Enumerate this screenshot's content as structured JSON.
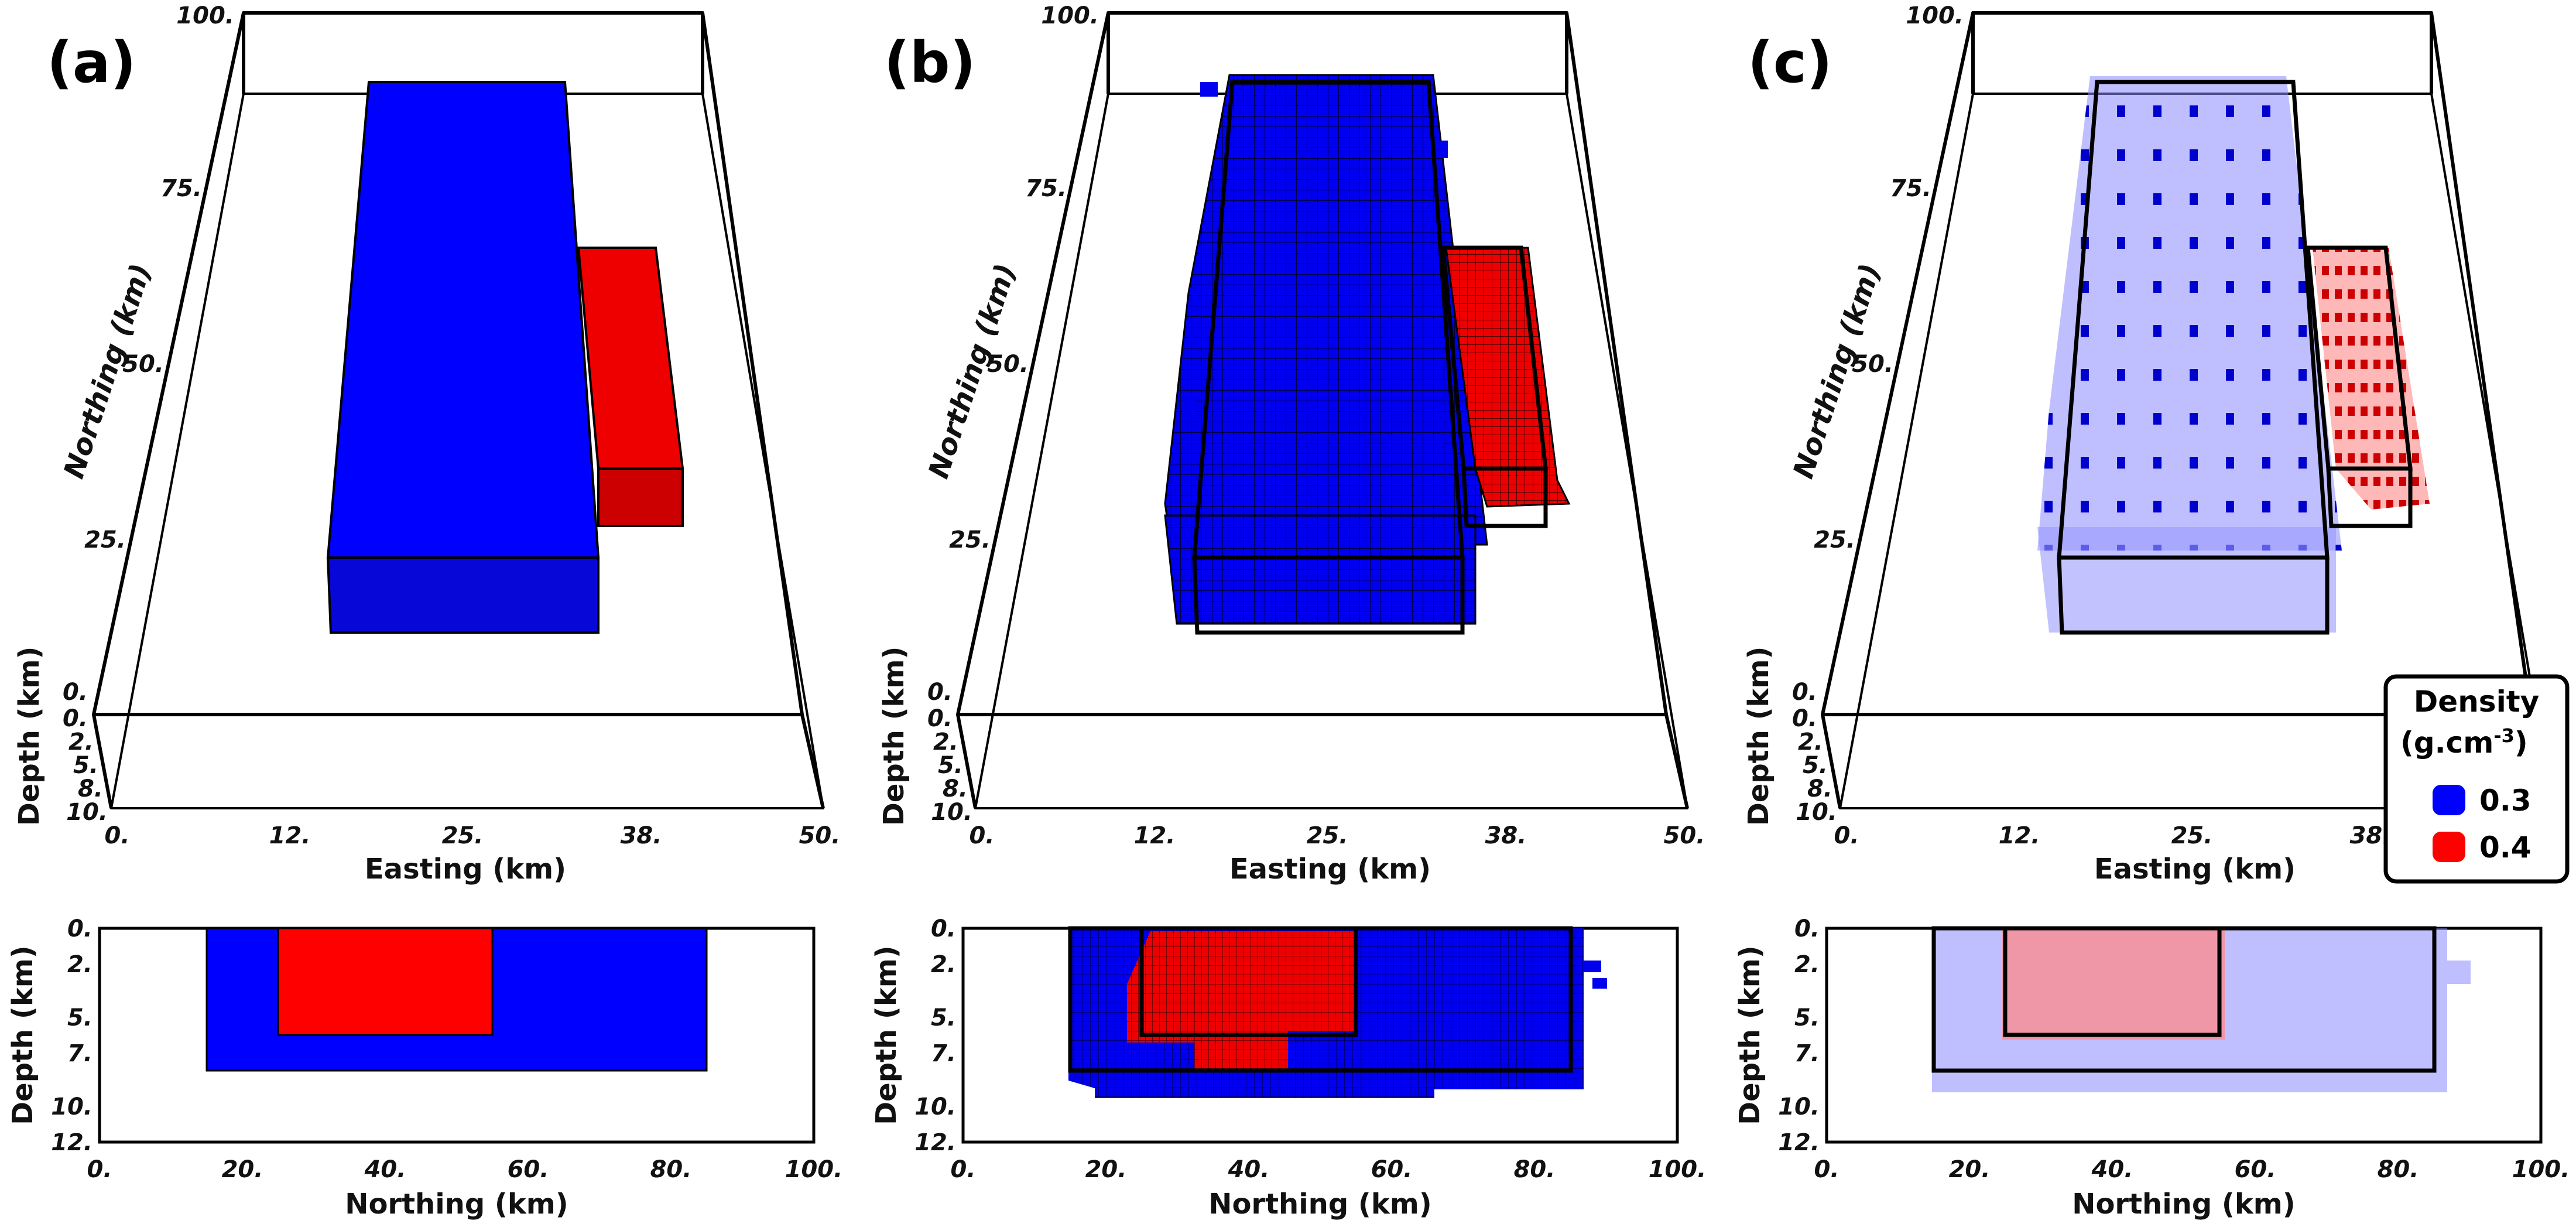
{
  "panels": [
    {
      "label": "(a)",
      "northing_label": "Northing (km)",
      "easting_label": "Easting (km)",
      "depth_label": "Depth (km)",
      "bottom_xlabel": "Northing (km)",
      "bottom_ylabel": "Depth (km)"
    },
    {
      "label": "(b)",
      "northing_label": "Northing (km)",
      "easting_label": "Easting (km)",
      "depth_label": "Depth (km)",
      "bottom_xlabel": "Northing (km)",
      "bottom_ylabel": "Depth (km)"
    },
    {
      "label": "(c)",
      "northing_label": "Northing (km)",
      "easting_label": "Easting (km)",
      "depth_label": "Depth (km)",
      "bottom_xlabel": "Northing (km)",
      "bottom_ylabel": "Depth (km)"
    }
  ],
  "axes": {
    "northing_ticks": [
      "0.",
      "25.",
      "50.",
      "75.",
      "100."
    ],
    "easting_ticks": [
      "0.",
      "12.",
      "25.",
      "38.",
      "50."
    ],
    "depth_ticks_3d": [
      "0.",
      "2.",
      "5.",
      "8.",
      "10."
    ],
    "bottom_x_ticks": [
      "0.",
      "20.",
      "40.",
      "60.",
      "80.",
      "100."
    ],
    "bottom_y_ticks": [
      "0.",
      "2.",
      "5.",
      "7.",
      "10.",
      "12."
    ]
  },
  "legend": {
    "title_line1": "Density",
    "title_line2": "(g.cm",
    "title_sup": "-3",
    "title_close": ")",
    "items": [
      {
        "label": "0.3",
        "color": "#0000ff"
      },
      {
        "label": "0.4",
        "color": "#ff0000"
      }
    ]
  },
  "model": {
    "domain": {
      "easting": [
        0,
        50
      ],
      "northing": [
        0,
        100
      ],
      "depth": [
        0,
        12
      ]
    },
    "bodies": [
      {
        "name": "0.3",
        "color": "#0000ff",
        "easting": [
          15,
          35
        ],
        "northing": [
          15,
          85
        ],
        "depth": [
          0,
          8
        ]
      },
      {
        "name": "0.4",
        "color": "#ff0000",
        "easting": [
          35,
          40
        ],
        "northing": [
          25,
          55
        ],
        "depth": [
          0,
          6
        ]
      }
    ]
  }
}
